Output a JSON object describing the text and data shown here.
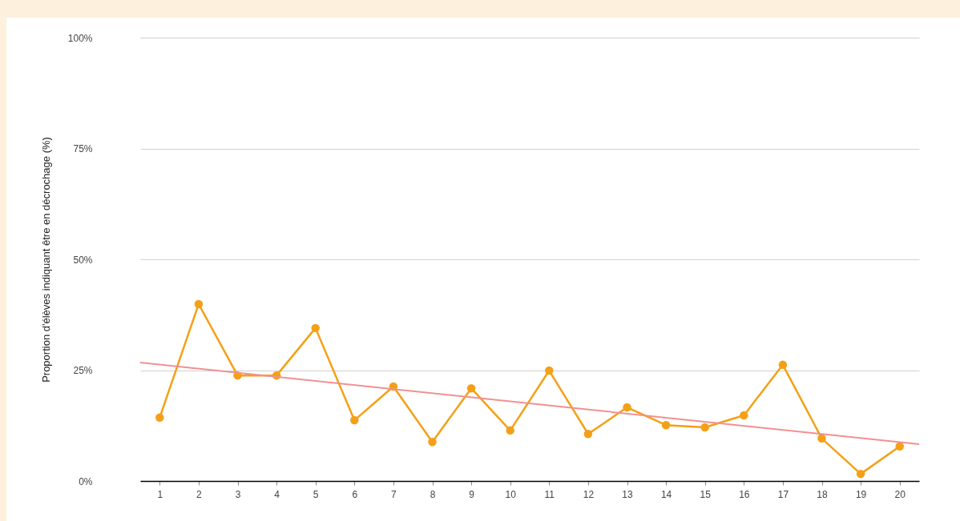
{
  "chart_data": {
    "type": "line",
    "ylabel": "Proportion d'élèves indiquant être en décrochage (%)",
    "x": [
      1,
      2,
      3,
      4,
      5,
      6,
      7,
      8,
      9,
      10,
      11,
      12,
      13,
      14,
      15,
      16,
      17,
      18,
      19,
      20
    ],
    "xlim": [
      0.5,
      20.5
    ],
    "xticks": [
      1,
      2,
      3,
      4,
      5,
      6,
      7,
      8,
      9,
      10,
      11,
      12,
      13,
      14,
      15,
      16,
      17,
      18,
      19,
      20
    ],
    "ylim": [
      0,
      100
    ],
    "yticks": [
      {
        "value": 0,
        "label": "0%"
      },
      {
        "value": 25,
        "label": "25%"
      },
      {
        "value": 50,
        "label": "50%"
      },
      {
        "value": 75,
        "label": "75%"
      },
      {
        "value": 100,
        "label": "100%"
      }
    ],
    "grid": "y",
    "marker": "circle",
    "line_style": "solid",
    "series": [
      {
        "color": "#f4a017",
        "values": [
          14.3,
          39.9,
          23.8,
          23.8,
          34.5,
          13.7,
          21.3,
          8.8,
          20.9,
          11.4,
          24.9,
          10.6,
          16.6,
          12.6,
          12.1,
          14.8,
          26.2,
          9.6,
          1.6,
          7.8
        ]
      },
      {
        "type": "line",
        "color": "#f29090",
        "marker": "none",
        "x": [
          0.5,
          20.5
        ],
        "values": [
          26.7,
          8.3
        ]
      }
    ]
  }
}
